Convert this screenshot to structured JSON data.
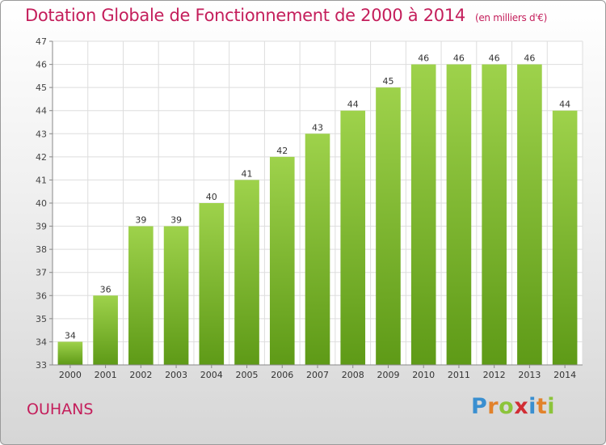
{
  "header": {
    "title": "Dotation Globale de Fonctionnement de 2000 à 2014",
    "unit_note": "(en milliers d'€)"
  },
  "footer": {
    "commune": "OUHANS",
    "brand_letters": [
      "P",
      "r",
      "o",
      "x",
      "i",
      "t",
      "i"
    ]
  },
  "colors": {
    "title": "#c41e5b",
    "bar_top": "#9ed24b",
    "bar_bottom": "#5e9a17",
    "grid": "#dddddd"
  },
  "chart_data": {
    "type": "bar",
    "title": "Dotation Globale de Fonctionnement de 2000 à 2014",
    "subtitle": "(en milliers d'€)",
    "xlabel": "",
    "ylabel": "",
    "categories": [
      "2000",
      "2001",
      "2002",
      "2003",
      "2004",
      "2005",
      "2006",
      "2007",
      "2008",
      "2009",
      "2010",
      "2011",
      "2012",
      "2013",
      "2014"
    ],
    "values": [
      34,
      36,
      39,
      39,
      40,
      41,
      42,
      43,
      44,
      45,
      46,
      46,
      46,
      46,
      44
    ],
    "data_labels": [
      "34",
      "36",
      "39",
      "39",
      "40",
      "41",
      "42",
      "43",
      "44",
      "45",
      "46",
      "46",
      "46",
      "46",
      "44"
    ],
    "ylim": [
      33,
      47
    ],
    "yticks": [
      33,
      34,
      35,
      36,
      37,
      38,
      39,
      40,
      41,
      42,
      43,
      44,
      45,
      46,
      47
    ],
    "grid": true,
    "legend": "none"
  }
}
